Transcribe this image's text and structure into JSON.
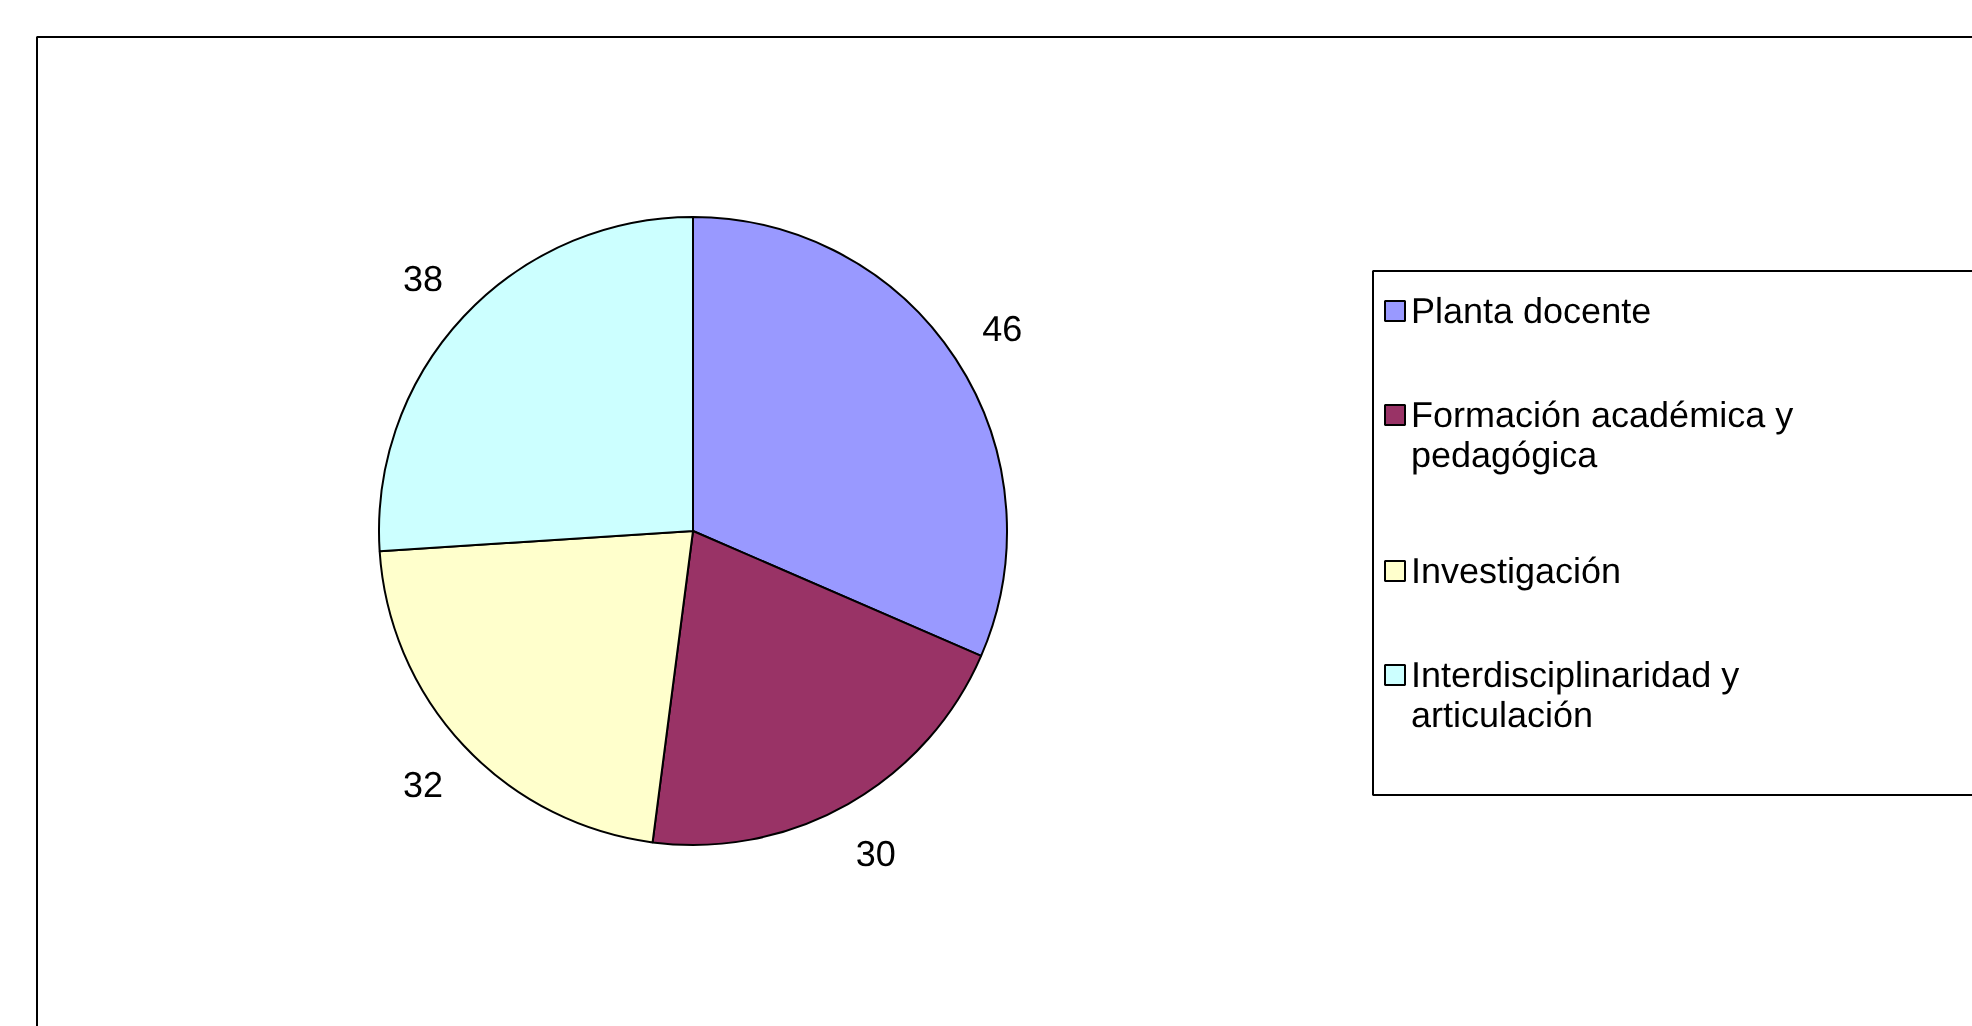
{
  "chart_data": {
    "type": "pie",
    "categories": [
      "Planta docente",
      "Formación académica y pedagógica",
      "Investigación",
      "Interdisciplinaridad y articulación"
    ],
    "values": [
      46,
      30,
      32,
      38
    ],
    "colors": [
      "#9999ff",
      "#993366",
      "#ffffcc",
      "#ccffff"
    ],
    "data_labels": true,
    "legend": "right"
  }
}
